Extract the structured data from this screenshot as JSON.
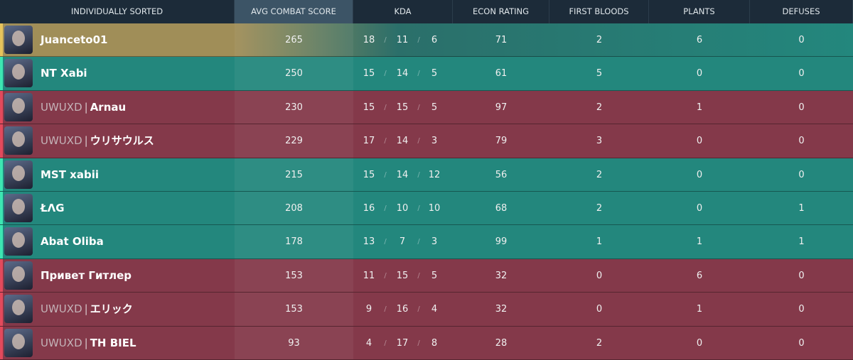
{
  "header": {
    "columns": [
      "INDIVIDUALLY SORTED",
      "AVG COMBAT SCORE",
      "KDA",
      "ECON RATING",
      "FIRST BLOODS",
      "PLANTS",
      "DEFUSES"
    ],
    "sorted_column": 1
  },
  "table": {
    "kda_separator": "/",
    "tag_separator": "|",
    "rows": [
      {
        "name": "Juanceto01",
        "color": "#a08e58",
        "stripe": "#e6c35c",
        "acs": 265,
        "kills": 18,
        "deaths": 11,
        "assists": 6,
        "econ": 71,
        "first_bloods": 2,
        "plants": 6,
        "defuses": 0
      },
      {
        "name": "NT Xabi",
        "color": "#23877d",
        "stripe": "#3de6b2",
        "acs": 250,
        "kills": 15,
        "deaths": 14,
        "assists": 5,
        "econ": 61,
        "first_bloods": 5,
        "plants": 0,
        "defuses": 0
      },
      {
        "tag": "UWUXD",
        "name": "Arnau",
        "color": "#84394a",
        "stripe": "#e24a5c",
        "acs": 230,
        "kills": 15,
        "deaths": 15,
        "assists": 5,
        "econ": 97,
        "first_bloods": 2,
        "plants": 1,
        "defuses": 0
      },
      {
        "tag": "UWUXD",
        "name": "ウリサウルス",
        "color": "#84394a",
        "stripe": "#e24a5c",
        "acs": 229,
        "kills": 17,
        "deaths": 14,
        "assists": 3,
        "econ": 79,
        "first_bloods": 3,
        "plants": 0,
        "defuses": 0
      },
      {
        "name": "MST xabii",
        "color": "#23877d",
        "stripe": "#3de6b2",
        "acs": 215,
        "kills": 15,
        "deaths": 14,
        "assists": 12,
        "econ": 56,
        "first_bloods": 2,
        "plants": 0,
        "defuses": 0
      },
      {
        "name": "ŁΛG",
        "color": "#23877d",
        "stripe": "#3de6b2",
        "acs": 208,
        "kills": 16,
        "deaths": 10,
        "assists": 10,
        "econ": 68,
        "first_bloods": 2,
        "plants": 0,
        "defuses": 1
      },
      {
        "name": "Abat Oliba",
        "color": "#23877d",
        "stripe": "#3de6b2",
        "acs": 178,
        "kills": 13,
        "deaths": 7,
        "assists": 3,
        "econ": 99,
        "first_bloods": 1,
        "plants": 1,
        "defuses": 1
      },
      {
        "name": "Привет Гитлер",
        "color": "#84394a",
        "stripe": "#e24a5c",
        "acs": 153,
        "kills": 11,
        "deaths": 15,
        "assists": 5,
        "econ": 32,
        "first_bloods": 0,
        "plants": 6,
        "defuses": 0
      },
      {
        "tag": "UWUXD",
        "name": "エリック",
        "color": "#84394a",
        "stripe": "#e24a5c",
        "acs": 153,
        "kills": 9,
        "deaths": 16,
        "assists": 4,
        "econ": 32,
        "first_bloods": 0,
        "plants": 1,
        "defuses": 0
      },
      {
        "tag": "UWUXD",
        "name": "TH BIEL",
        "color": "#84394a",
        "stripe": "#e24a5c",
        "acs": 93,
        "kills": 4,
        "deaths": 17,
        "assists": 8,
        "econ": 28,
        "first_bloods": 2,
        "plants": 0,
        "defuses": 0
      }
    ]
  }
}
